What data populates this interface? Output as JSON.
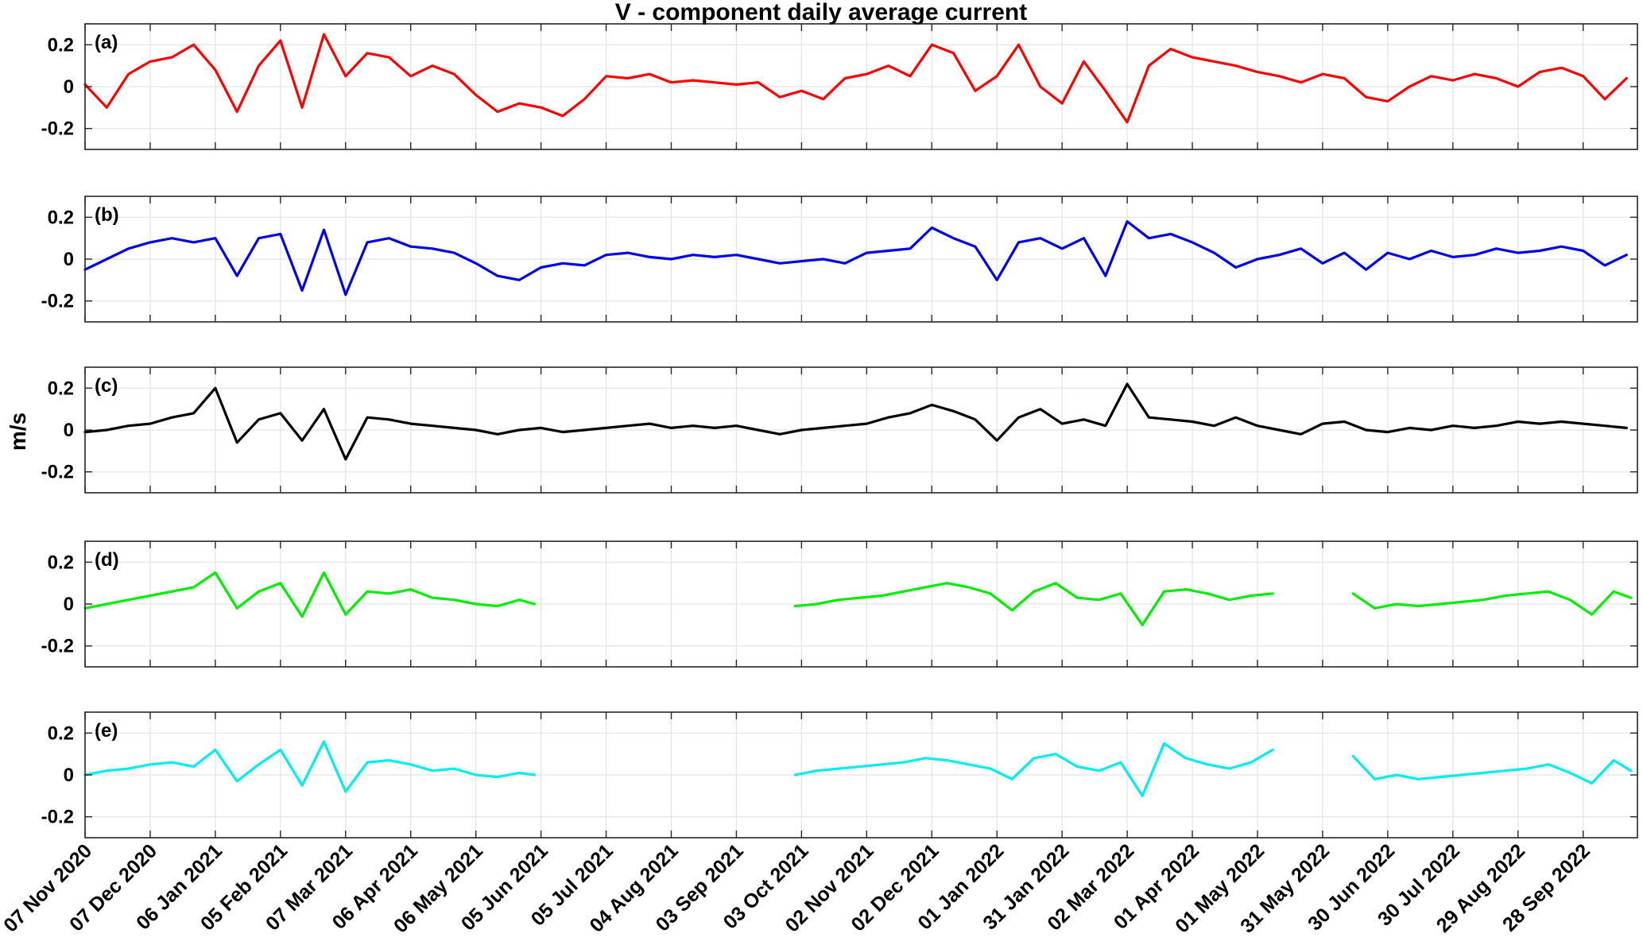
{
  "chart_data": {
    "type": "line",
    "title": "V - component daily average current",
    "ylabel": "m/s",
    "xlabel": "",
    "ylim": [
      -0.3,
      0.3
    ],
    "yticks": [
      -0.2,
      0,
      0.2
    ],
    "ytick_labels": [
      "-0.2",
      "0",
      "0.2"
    ],
    "x_start": "2020-11-07",
    "x_end": "2022-10-23",
    "xticks": [
      "2020-11-07",
      "2020-12-07",
      "2021-01-06",
      "2021-02-05",
      "2021-03-07",
      "2021-04-06",
      "2021-05-06",
      "2021-06-05",
      "2021-07-05",
      "2021-08-04",
      "2021-09-03",
      "2021-10-03",
      "2021-11-02",
      "2021-12-02",
      "2022-01-01",
      "2022-01-31",
      "2022-03-02",
      "2022-04-01",
      "2022-05-01",
      "2022-05-31",
      "2022-06-30",
      "2022-07-30",
      "2022-08-29",
      "2022-09-28"
    ],
    "xtick_labels": [
      "07 Nov 2020",
      "07 Dec 2020",
      "06 Jan 2021",
      "05 Feb 2021",
      "07 Mar 2021",
      "06 Apr 2021",
      "06 May 2021",
      "05 Jun 2021",
      "05 Jul 2021",
      "04 Aug 2021",
      "03 Sep 2021",
      "03 Oct 2021",
      "02 Nov 2021",
      "02 Dec 2021",
      "01 Jan 2022",
      "31 Jan 2022",
      "02 Mar 2022",
      "01 Apr 2022",
      "01 May 2022",
      "31 May 2022",
      "30 Jun 2022",
      "30 Jul 2022",
      "29 Aug 2022",
      "28 Sep 2022"
    ],
    "grid": true,
    "series": [
      {
        "label": "(a)",
        "color": "#ff0000",
        "x": [
          "2020-11-07",
          "2020-11-17",
          "2020-11-27",
          "2020-12-07",
          "2020-12-17",
          "2020-12-27",
          "2021-01-06",
          "2021-01-16",
          "2021-01-26",
          "2021-02-05",
          "2021-02-15",
          "2021-02-25",
          "2021-03-07",
          "2021-03-17",
          "2021-03-27",
          "2021-04-06",
          "2021-04-16",
          "2021-04-26",
          "2021-05-06",
          "2021-05-16",
          "2021-05-26",
          "2021-06-05",
          "2021-06-15",
          "2021-06-25",
          "2021-07-05",
          "2021-07-15",
          "2021-07-25",
          "2021-08-04",
          "2021-08-14",
          "2021-08-24",
          "2021-09-03",
          "2021-09-13",
          "2021-09-23",
          "2021-10-03",
          "2021-10-13",
          "2021-10-23",
          "2021-11-02",
          "2021-11-12",
          "2021-11-22",
          "2021-12-02",
          "2021-12-12",
          "2021-12-22",
          "2022-01-01",
          "2022-01-11",
          "2022-01-21",
          "2022-01-31",
          "2022-02-10",
          "2022-02-20",
          "2022-03-02",
          "2022-03-12",
          "2022-03-22",
          "2022-04-01",
          "2022-04-11",
          "2022-04-21",
          "2022-05-01",
          "2022-05-11",
          "2022-05-21",
          "2022-05-31",
          "2022-06-10",
          "2022-06-20",
          "2022-06-30",
          "2022-07-10",
          "2022-07-20",
          "2022-07-30",
          "2022-08-09",
          "2022-08-19",
          "2022-08-29",
          "2022-09-08",
          "2022-09-18",
          "2022-09-28",
          "2022-10-08",
          "2022-10-18"
        ],
        "values": [
          0.01,
          -0.1,
          0.06,
          0.12,
          0.14,
          0.2,
          0.08,
          -0.12,
          0.1,
          0.22,
          -0.1,
          0.25,
          0.05,
          0.16,
          0.14,
          0.05,
          0.1,
          0.06,
          -0.04,
          -0.12,
          -0.08,
          -0.1,
          -0.14,
          -0.06,
          0.05,
          0.04,
          0.06,
          0.02,
          0.03,
          0.02,
          0.01,
          0.02,
          -0.05,
          -0.02,
          -0.06,
          0.04,
          0.06,
          0.1,
          0.05,
          0.2,
          0.16,
          -0.02,
          0.05,
          0.2,
          0.0,
          -0.08,
          0.12,
          -0.02,
          -0.17,
          0.1,
          0.18,
          0.14,
          0.12,
          0.1,
          0.07,
          0.05,
          0.02,
          0.06,
          0.04,
          -0.05,
          -0.07,
          0.0,
          0.05,
          0.03,
          0.06,
          0.04,
          0.0,
          0.07,
          0.09,
          0.05,
          -0.06,
          0.04
        ]
      },
      {
        "label": "(b)",
        "color": "#0000ee",
        "x": [
          "2020-11-07",
          "2020-11-17",
          "2020-11-27",
          "2020-12-07",
          "2020-12-17",
          "2020-12-27",
          "2021-01-06",
          "2021-01-16",
          "2021-01-26",
          "2021-02-05",
          "2021-02-15",
          "2021-02-25",
          "2021-03-07",
          "2021-03-17",
          "2021-03-27",
          "2021-04-06",
          "2021-04-16",
          "2021-04-26",
          "2021-05-06",
          "2021-05-16",
          "2021-05-26",
          "2021-06-05",
          "2021-06-15",
          "2021-06-25",
          "2021-07-05",
          "2021-07-15",
          "2021-07-25",
          "2021-08-04",
          "2021-08-14",
          "2021-08-24",
          "2021-09-03",
          "2021-09-13",
          "2021-09-23",
          "2021-10-03",
          "2021-10-13",
          "2021-10-23",
          "2021-11-02",
          "2021-11-12",
          "2021-11-22",
          "2021-12-02",
          "2021-12-12",
          "2021-12-22",
          "2022-01-01",
          "2022-01-11",
          "2022-01-21",
          "2022-01-31",
          "2022-02-10",
          "2022-02-20",
          "2022-03-02",
          "2022-03-12",
          "2022-03-22",
          "2022-04-01",
          "2022-04-11",
          "2022-04-21",
          "2022-05-01",
          "2022-05-11",
          "2022-05-21",
          "2022-05-31",
          "2022-06-10",
          "2022-06-20",
          "2022-06-30",
          "2022-07-10",
          "2022-07-20",
          "2022-07-30",
          "2022-08-09",
          "2022-08-19",
          "2022-08-29",
          "2022-09-08",
          "2022-09-18",
          "2022-09-28",
          "2022-10-08",
          "2022-10-18"
        ],
        "values": [
          -0.05,
          0.0,
          0.05,
          0.08,
          0.1,
          0.08,
          0.1,
          -0.08,
          0.1,
          0.12,
          -0.15,
          0.14,
          -0.17,
          0.08,
          0.1,
          0.06,
          0.05,
          0.03,
          -0.02,
          -0.08,
          -0.1,
          -0.04,
          -0.02,
          -0.03,
          0.02,
          0.03,
          0.01,
          0.0,
          0.02,
          0.01,
          0.02,
          0.0,
          -0.02,
          -0.01,
          0.0,
          -0.02,
          0.03,
          0.04,
          0.05,
          0.15,
          0.1,
          0.06,
          -0.1,
          0.08,
          0.1,
          0.05,
          0.1,
          -0.08,
          0.18,
          0.1,
          0.12,
          0.08,
          0.03,
          -0.04,
          0.0,
          0.02,
          0.05,
          -0.02,
          0.03,
          -0.05,
          0.03,
          0.0,
          0.04,
          0.01,
          0.02,
          0.05,
          0.03,
          0.04,
          0.06,
          0.04,
          -0.03,
          0.02
        ]
      },
      {
        "label": "(c)",
        "color": "#000000",
        "x": [
          "2020-11-07",
          "2020-11-17",
          "2020-11-27",
          "2020-12-07",
          "2020-12-17",
          "2020-12-27",
          "2021-01-06",
          "2021-01-16",
          "2021-01-26",
          "2021-02-05",
          "2021-02-15",
          "2021-02-25",
          "2021-03-07",
          "2021-03-17",
          "2021-03-27",
          "2021-04-06",
          "2021-04-16",
          "2021-04-26",
          "2021-05-06",
          "2021-05-16",
          "2021-05-26",
          "2021-06-05",
          "2021-06-15",
          "2021-06-25",
          "2021-07-05",
          "2021-07-15",
          "2021-07-25",
          "2021-08-04",
          "2021-08-14",
          "2021-08-24",
          "2021-09-03",
          "2021-09-13",
          "2021-09-23",
          "2021-10-03",
          "2021-10-13",
          "2021-10-23",
          "2021-11-02",
          "2021-11-12",
          "2021-11-22",
          "2021-12-02",
          "2021-12-12",
          "2021-12-22",
          "2022-01-01",
          "2022-01-11",
          "2022-01-21",
          "2022-01-31",
          "2022-02-10",
          "2022-02-20",
          "2022-03-02",
          "2022-03-12",
          "2022-03-22",
          "2022-04-01",
          "2022-04-11",
          "2022-04-21",
          "2022-05-01",
          "2022-05-11",
          "2022-05-21",
          "2022-05-31",
          "2022-06-10",
          "2022-06-20",
          "2022-06-30",
          "2022-07-10",
          "2022-07-20",
          "2022-07-30",
          "2022-08-09",
          "2022-08-19",
          "2022-08-29",
          "2022-09-08",
          "2022-09-18",
          "2022-09-28",
          "2022-10-08",
          "2022-10-18"
        ],
        "values": [
          -0.01,
          0.0,
          0.02,
          0.03,
          0.06,
          0.08,
          0.2,
          -0.06,
          0.05,
          0.08,
          -0.05,
          0.1,
          -0.14,
          0.06,
          0.05,
          0.03,
          0.02,
          0.01,
          0.0,
          -0.02,
          0.0,
          0.01,
          -0.01,
          0.0,
          0.01,
          0.02,
          0.03,
          0.01,
          0.02,
          0.01,
          0.02,
          0.0,
          -0.02,
          0.0,
          0.01,
          0.02,
          0.03,
          0.06,
          0.08,
          0.12,
          0.09,
          0.05,
          -0.05,
          0.06,
          0.1,
          0.03,
          0.05,
          0.02,
          0.22,
          0.06,
          0.05,
          0.04,
          0.02,
          0.06,
          0.02,
          0.0,
          -0.02,
          0.03,
          0.04,
          0.0,
          -0.01,
          0.01,
          0.0,
          0.02,
          0.01,
          0.02,
          0.04,
          0.03,
          0.04,
          0.03,
          0.02,
          0.01
        ]
      },
      {
        "label": "(d)",
        "color": "#00ee00",
        "segments": [
          {
            "x": [
              "2020-11-07",
              "2020-11-17",
              "2020-11-27",
              "2020-12-07",
              "2020-12-17",
              "2020-12-27",
              "2021-01-06",
              "2021-01-16",
              "2021-01-26",
              "2021-02-05",
              "2021-02-15",
              "2021-02-25",
              "2021-03-07",
              "2021-03-17",
              "2021-03-27",
              "2021-04-06",
              "2021-04-16",
              "2021-04-26",
              "2021-05-06",
              "2021-05-16",
              "2021-05-26",
              "2021-06-02"
            ],
            "values": [
              -0.02,
              0.0,
              0.02,
              0.04,
              0.06,
              0.08,
              0.15,
              -0.02,
              0.06,
              0.1,
              -0.06,
              0.15,
              -0.05,
              0.06,
              0.05,
              0.07,
              0.03,
              0.02,
              0.0,
              -0.01,
              0.02,
              0.0
            ]
          },
          {
            "x": [
              "2021-09-30",
              "2021-10-10",
              "2021-10-20",
              "2021-10-30",
              "2021-11-09",
              "2021-11-19",
              "2021-11-29",
              "2021-12-09",
              "2021-12-19",
              "2021-12-29",
              "2022-01-08",
              "2022-01-18",
              "2022-01-28",
              "2022-02-07",
              "2022-02-17",
              "2022-02-27",
              "2022-03-09",
              "2022-03-19",
              "2022-03-29",
              "2022-04-08",
              "2022-04-18",
              "2022-04-28",
              "2022-05-08"
            ],
            "values": [
              -0.01,
              0.0,
              0.02,
              0.03,
              0.04,
              0.06,
              0.08,
              0.1,
              0.08,
              0.05,
              -0.03,
              0.06,
              0.1,
              0.03,
              0.02,
              0.05,
              -0.1,
              0.06,
              0.07,
              0.05,
              0.02,
              0.04,
              0.05
            ]
          },
          {
            "x": [
              "2022-06-14",
              "2022-06-24",
              "2022-07-04",
              "2022-07-14",
              "2022-07-24",
              "2022-08-03",
              "2022-08-13",
              "2022-08-23",
              "2022-09-02",
              "2022-09-12",
              "2022-09-22",
              "2022-10-02",
              "2022-10-12",
              "2022-10-20"
            ],
            "values": [
              0.05,
              -0.02,
              0.0,
              -0.01,
              0.0,
              0.01,
              0.02,
              0.04,
              0.05,
              0.06,
              0.02,
              -0.05,
              0.06,
              0.03
            ]
          }
        ]
      },
      {
        "label": "(e)",
        "color": "#00eeee",
        "segments": [
          {
            "x": [
              "2020-11-07",
              "2020-11-17",
              "2020-11-27",
              "2020-12-07",
              "2020-12-17",
              "2020-12-27",
              "2021-01-06",
              "2021-01-16",
              "2021-01-26",
              "2021-02-05",
              "2021-02-15",
              "2021-02-25",
              "2021-03-07",
              "2021-03-17",
              "2021-03-27",
              "2021-04-06",
              "2021-04-16",
              "2021-04-26",
              "2021-05-06",
              "2021-05-16",
              "2021-05-26",
              "2021-06-02"
            ],
            "values": [
              0.0,
              0.02,
              0.03,
              0.05,
              0.06,
              0.04,
              0.12,
              -0.03,
              0.05,
              0.12,
              -0.05,
              0.16,
              -0.08,
              0.06,
              0.07,
              0.05,
              0.02,
              0.03,
              0.0,
              -0.01,
              0.01,
              0.0
            ]
          },
          {
            "x": [
              "2021-09-30",
              "2021-10-10",
              "2021-10-20",
              "2021-10-30",
              "2021-11-09",
              "2021-11-19",
              "2021-11-29",
              "2021-12-09",
              "2021-12-19",
              "2021-12-29",
              "2022-01-08",
              "2022-01-18",
              "2022-01-28",
              "2022-02-07",
              "2022-02-17",
              "2022-02-27",
              "2022-03-09",
              "2022-03-19",
              "2022-03-29",
              "2022-04-08",
              "2022-04-18",
              "2022-04-28",
              "2022-05-08"
            ],
            "values": [
              0.0,
              0.02,
              0.03,
              0.04,
              0.05,
              0.06,
              0.08,
              0.07,
              0.05,
              0.03,
              -0.02,
              0.08,
              0.1,
              0.04,
              0.02,
              0.06,
              -0.1,
              0.15,
              0.08,
              0.05,
              0.03,
              0.06,
              0.12
            ]
          },
          {
            "x": [
              "2022-06-14",
              "2022-06-24",
              "2022-07-04",
              "2022-07-14",
              "2022-07-24",
              "2022-08-03",
              "2022-08-13",
              "2022-08-23",
              "2022-09-02",
              "2022-09-12",
              "2022-09-22",
              "2022-10-02",
              "2022-10-12",
              "2022-10-20"
            ],
            "values": [
              0.09,
              -0.02,
              0.0,
              -0.02,
              -0.01,
              0.0,
              0.01,
              0.02,
              0.03,
              0.05,
              0.01,
              -0.04,
              0.07,
              0.02
            ]
          }
        ]
      }
    ]
  }
}
